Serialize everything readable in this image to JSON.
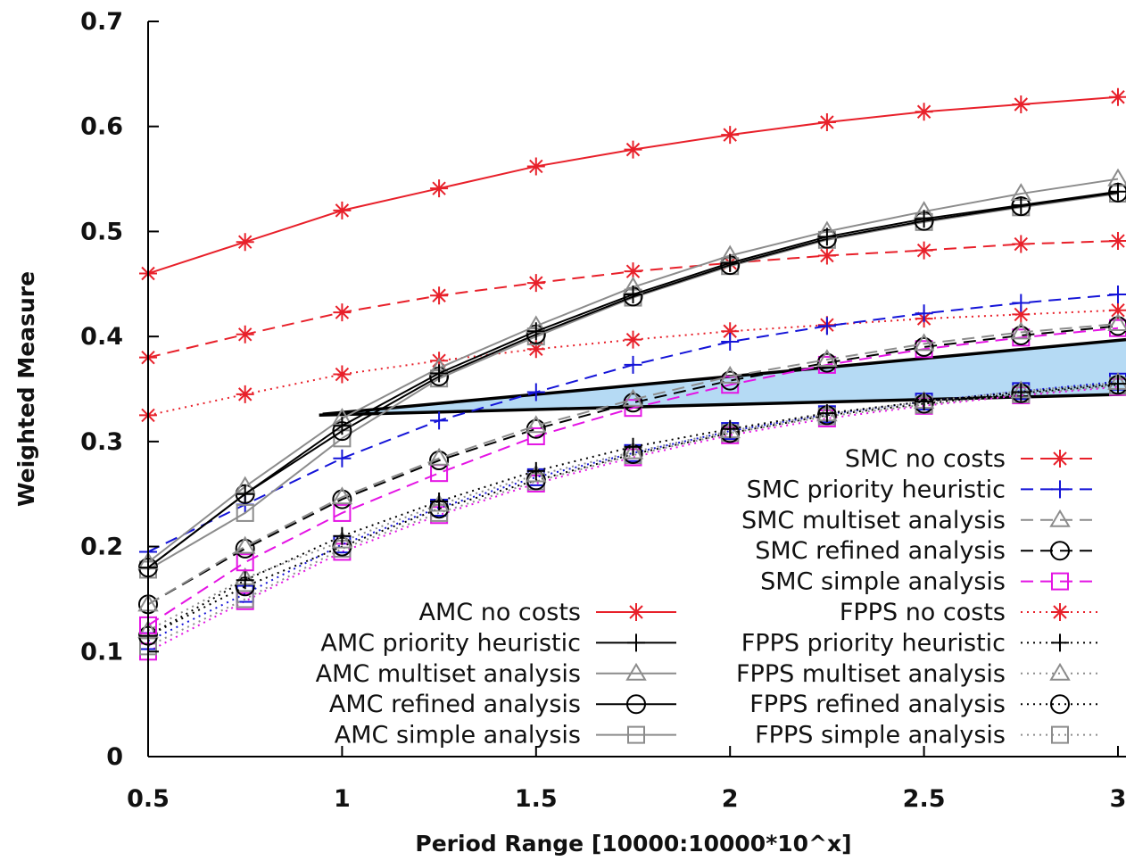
{
  "chart_data": {
    "type": "line",
    "xlabel": "Period Range [10000:10000*10^x]",
    "ylabel": "Weighted Measure",
    "xlim": [
      0.5,
      3
    ],
    "ylim": [
      0,
      0.7
    ],
    "grid": false,
    "x_ticks": [
      "0.5",
      "1",
      "1.5",
      "2",
      "2.5",
      "3"
    ],
    "y_ticks": [
      "0",
      "0.1",
      "0.2",
      "0.3",
      "0.4",
      "0.5",
      "0.6",
      "0.7"
    ],
    "x": [
      0.5,
      0.75,
      1.0,
      1.25,
      1.5,
      1.75,
      2.0,
      2.25,
      2.5,
      2.75,
      3.0
    ],
    "series": [
      {
        "name": "AMC no costs",
        "color": "#e8202a",
        "dash": "solid",
        "marker": "asterisk",
        "values": [
          0.46,
          0.49,
          0.52,
          0.541,
          0.562,
          0.578,
          0.592,
          0.604,
          0.614,
          0.621,
          0.628
        ]
      },
      {
        "name": "AMC priority heuristic",
        "color": "#000000",
        "dash": "solid",
        "marker": "plus",
        "values": [
          0.18,
          0.25,
          0.315,
          0.365,
          0.405,
          0.44,
          0.47,
          0.495,
          0.512,
          0.525,
          0.538
        ]
      },
      {
        "name": "AMC multiset analysis",
        "color": "#8c8c8c",
        "dash": "solid",
        "marker": "triangle",
        "values": [
          0.185,
          0.257,
          0.322,
          0.37,
          0.41,
          0.447,
          0.477,
          0.5,
          0.519,
          0.536,
          0.55
        ]
      },
      {
        "name": "AMC refined analysis",
        "color": "#000000",
        "dash": "solid",
        "marker": "circle",
        "values": [
          0.18,
          0.25,
          0.31,
          0.362,
          0.402,
          0.438,
          0.468,
          0.493,
          0.51,
          0.524,
          0.537
        ]
      },
      {
        "name": "AMC simple analysis",
        "color": "#8c8c8c",
        "dash": "solid",
        "marker": "square",
        "values": [
          0.178,
          0.232,
          0.303,
          0.36,
          0.4,
          0.437,
          0.467,
          0.492,
          0.509,
          0.523,
          0.536
        ]
      },
      {
        "name": "SMC no costs",
        "color": "#e8202a",
        "dash": "dashed",
        "marker": "asterisk",
        "values": [
          0.38,
          0.402,
          0.423,
          0.439,
          0.451,
          0.462,
          0.47,
          0.477,
          0.482,
          0.488,
          0.491
        ]
      },
      {
        "name": "SMC priority heuristic",
        "color": "#1414d8",
        "dash": "dashed",
        "marker": "plus",
        "values": [
          0.195,
          0.24,
          0.284,
          0.32,
          0.347,
          0.373,
          0.395,
          0.41,
          0.422,
          0.432,
          0.44
        ]
      },
      {
        "name": "SMC multiset analysis",
        "color": "#8c8c8c",
        "dash": "dashed",
        "marker": "triangle",
        "values": [
          0.145,
          0.2,
          0.247,
          0.284,
          0.315,
          0.34,
          0.362,
          0.378,
          0.393,
          0.404,
          0.412
        ]
      },
      {
        "name": "SMC refined analysis",
        "color": "#000000",
        "dash": "dashed",
        "marker": "circle",
        "values": [
          0.145,
          0.198,
          0.245,
          0.282,
          0.312,
          0.337,
          0.358,
          0.375,
          0.39,
          0.401,
          0.41
        ]
      },
      {
        "name": "SMC simple analysis",
        "color": "#e414e4",
        "dash": "dashed",
        "marker": "square",
        "values": [
          0.125,
          0.185,
          0.232,
          0.27,
          0.305,
          0.332,
          0.354,
          0.373,
          0.388,
          0.399,
          0.408
        ]
      },
      {
        "name": "FPPS no costs",
        "color": "#e8202a",
        "dash": "dotted",
        "marker": "asterisk",
        "values": [
          0.325,
          0.345,
          0.364,
          0.377,
          0.388,
          0.397,
          0.405,
          0.411,
          0.417,
          0.421,
          0.425
        ]
      },
      {
        "name": "FPPS priority heuristic",
        "color": "#000000",
        "dash": "dotted",
        "marker": "plus",
        "values": [
          0.115,
          0.168,
          0.21,
          0.243,
          0.272,
          0.295,
          0.312,
          0.327,
          0.338,
          0.347,
          0.355
        ]
      },
      {
        "name": "FPPS multiset analysis",
        "color": "#8c8c8c",
        "dash": "dotted",
        "marker": "triangle",
        "values": [
          0.12,
          0.17,
          0.205,
          0.24,
          0.268,
          0.29,
          0.31,
          0.326,
          0.338,
          0.348,
          0.356
        ]
      },
      {
        "name": "FPPS refined analysis",
        "color": "#000000",
        "dash": "dotted",
        "marker": "circle",
        "values": [
          0.115,
          0.162,
          0.2,
          0.236,
          0.263,
          0.288,
          0.308,
          0.325,
          0.336,
          0.346,
          0.354
        ]
      },
      {
        "name": "FPPS simple analysis",
        "color": "#8c8c8c",
        "dash": "dotted",
        "marker": "square",
        "values": [
          0.105,
          0.15,
          0.198,
          0.232,
          0.262,
          0.287,
          0.308,
          0.324,
          0.335,
          0.345,
          0.353
        ]
      },
      {
        "name": "",
        "color": "#1414d8",
        "dash": "dotted",
        "marker": "square",
        "values": [
          0.11,
          0.155,
          0.202,
          0.237,
          0.266,
          0.289,
          0.31,
          0.326,
          0.338,
          0.348,
          0.357
        ]
      },
      {
        "name": "",
        "color": "#e414e4",
        "dash": "dotted",
        "marker": "square",
        "values": [
          0.1,
          0.148,
          0.195,
          0.23,
          0.26,
          0.285,
          0.306,
          0.322,
          0.334,
          0.344,
          0.352
        ]
      }
    ],
    "legend": {
      "columns": 2,
      "placement": "bottom-right"
    },
    "annotation": {
      "type": "shaded-wedge",
      "fill": "#a8d4f2",
      "stroke": "#000000",
      "apex": {
        "x": 0.95,
        "y": 0.326
      },
      "upper_end": {
        "x": 3.0,
        "y": 0.397
      },
      "lower_end": {
        "x": 3.0,
        "y": 0.345
      }
    }
  }
}
